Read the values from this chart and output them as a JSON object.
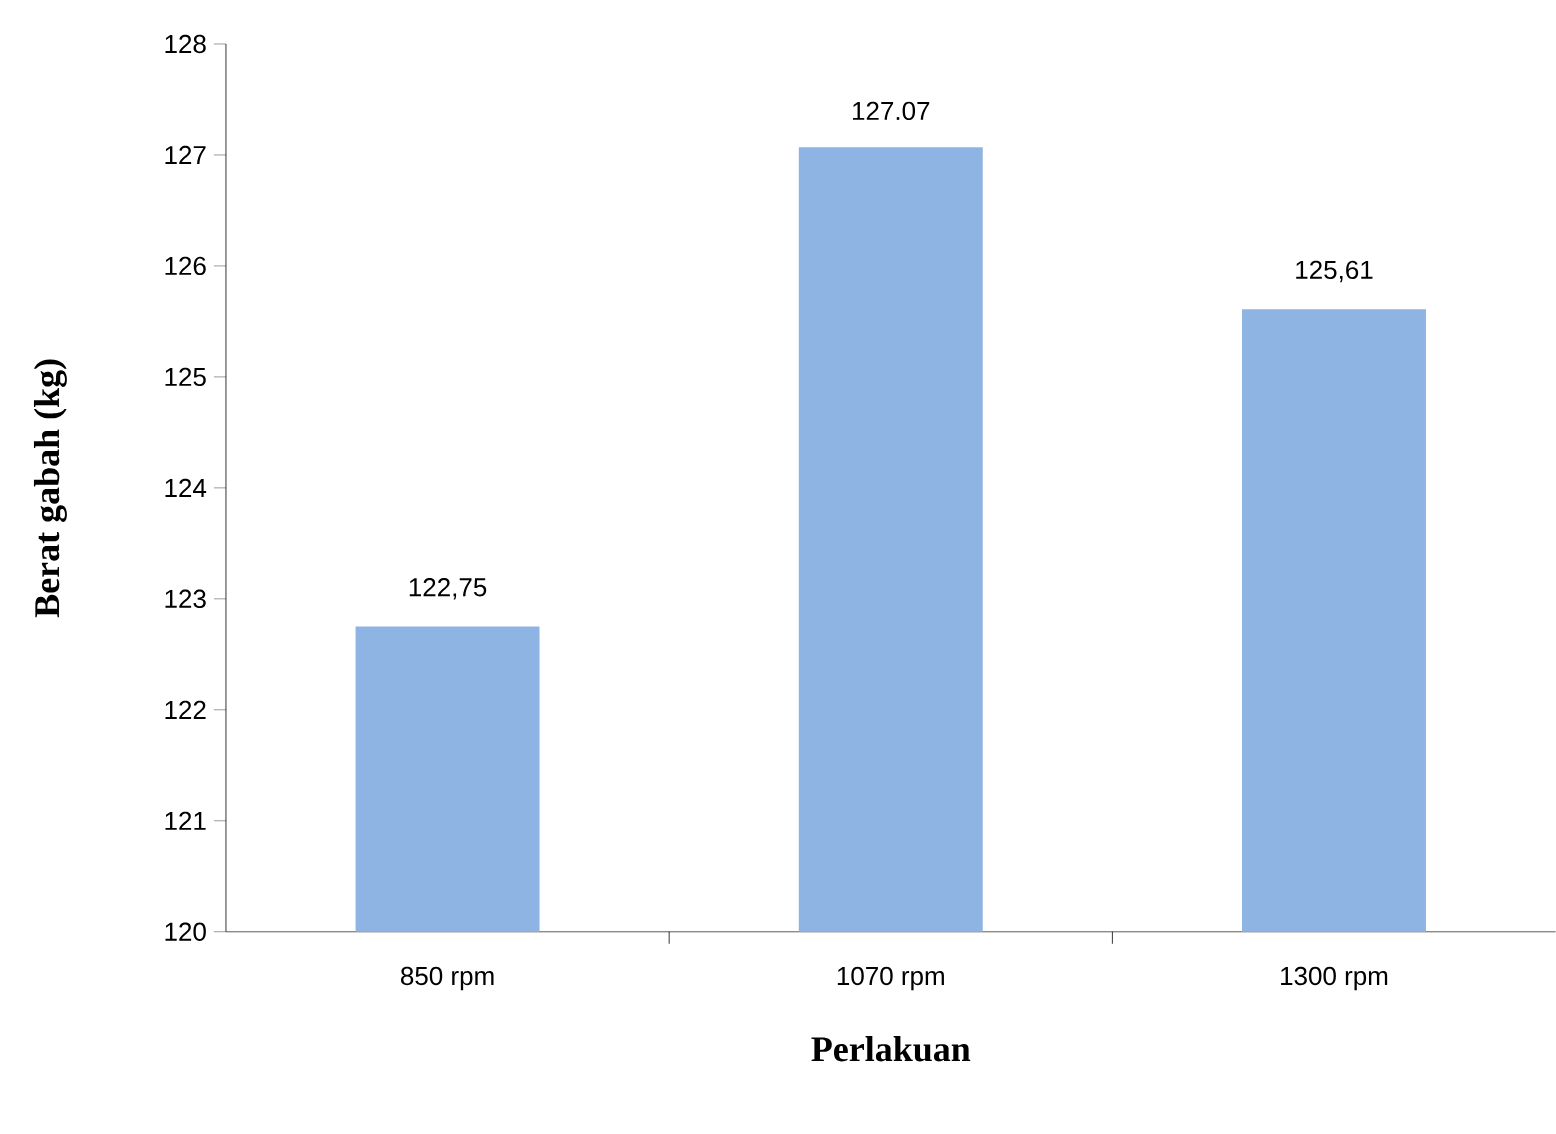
{
  "chart_data": {
    "type": "bar",
    "xlabel": "Perlakuan",
    "ylabel": "Berat gabah (kg)",
    "categories": [
      "850 rpm",
      "1070 rpm",
      "1300 rpm"
    ],
    "values": [
      122.75,
      127.07,
      125.61
    ],
    "value_labels": [
      "122,75",
      "127.07",
      "125,61"
    ],
    "color": "#8eb4e3",
    "ylim": [
      120,
      128
    ],
    "yticks": [
      120,
      121,
      122,
      123,
      124,
      125,
      126,
      127,
      128
    ],
    "grid": false
  }
}
